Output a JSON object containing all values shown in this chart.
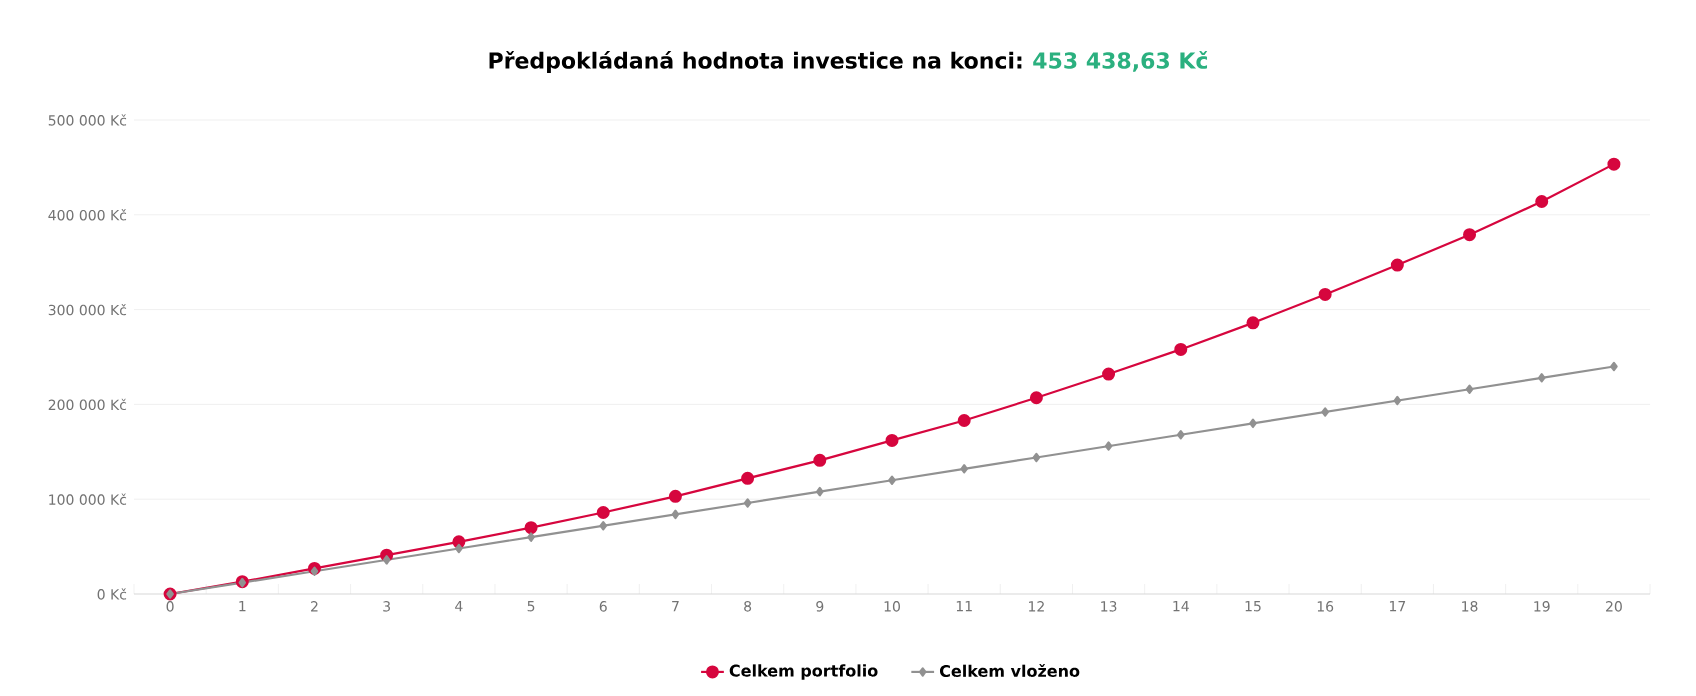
{
  "chart_data": {
    "type": "line",
    "title": "Předpokládaná hodnota investice na konci:",
    "subtitle": "453 438,63 Kč",
    "categories": [
      "0",
      "1",
      "2",
      "3",
      "4",
      "5",
      "6",
      "7",
      "8",
      "9",
      "10",
      "11",
      "12",
      "13",
      "14",
      "15",
      "16",
      "17",
      "18",
      "19",
      "20"
    ],
    "series": [
      {
        "name": "Celkem portfolio",
        "color": "#d6063e",
        "marker": "circle",
        "values": [
          0,
          13000,
          27000,
          41000,
          55000,
          70000,
          86000,
          103000,
          122000,
          141000,
          162000,
          183000,
          207000,
          232000,
          258000,
          286000,
          316000,
          347000,
          379000,
          414000,
          453438.63
        ]
      },
      {
        "name": "Celkem vloženo",
        "color": "#919191",
        "marker": "diamond",
        "values": [
          0,
          12000,
          24000,
          36000,
          48000,
          60000,
          72000,
          84000,
          96000,
          108000,
          120000,
          132000,
          144000,
          156000,
          168000,
          180000,
          192000,
          204000,
          216000,
          228000,
          240000
        ]
      }
    ],
    "ylim": [
      0,
      500000
    ],
    "yticks": [
      {
        "value": 0,
        "label": "0 Kč"
      },
      {
        "value": 100000,
        "label": "100 000 Kč"
      },
      {
        "value": 200000,
        "label": "200 000 Kč"
      },
      {
        "value": 300000,
        "label": "300 000 Kč"
      },
      {
        "value": 400000,
        "label": "400 000 Kč"
      },
      {
        "value": 500000,
        "label": "500 000 Kč"
      }
    ],
    "grid": "y",
    "legend": "bottom"
  }
}
